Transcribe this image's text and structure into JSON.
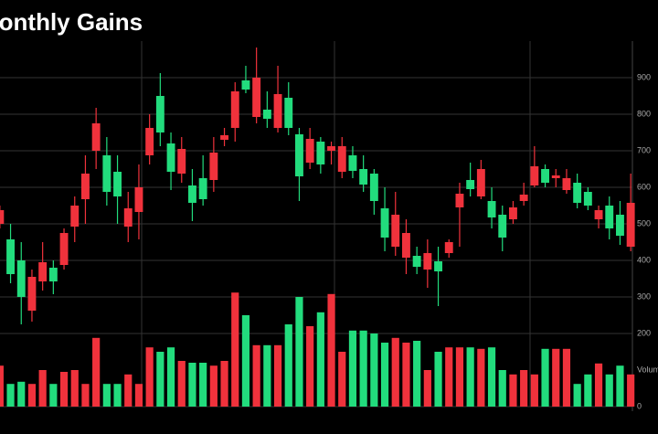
{
  "chart_data": {
    "type": "candlestick",
    "title": "Monthly Gains",
    "up_color": "#22dc7d",
    "down_color": "#f0323c",
    "grid": true,
    "ylim": [
      0,
      1000
    ],
    "yticks": [
      900,
      800,
      700,
      600,
      500,
      400
    ],
    "y2lim": [
      0,
      1000
    ],
    "y2ticks": [
      0,
      200,
      300
    ],
    "y2label": "Volume",
    "open": [
      537.5,
      362.5,
      300,
      355,
      395,
      342.5,
      475,
      550,
      637.5,
      775,
      587.5,
      575,
      542.5,
      600,
      762.5,
      750,
      642.5,
      705,
      557.5,
      567.5,
      695,
      742.5,
      862.5,
      867.5,
      900,
      787.5,
      855,
      762.5,
      630,
      732.5,
      662.5,
      712.5,
      712.5,
      645,
      607.5,
      562.5,
      462.5,
      525,
      475,
      382.5,
      420,
      370,
      450,
      582.5,
      595,
      650,
      517.5,
      462.5,
      545,
      580,
      657.5,
      612.5,
      632.5,
      625,
      557.5,
      550,
      537.5,
      487.5,
      467.5,
      557.5
    ],
    "high": [
      550,
      500,
      450,
      375,
      450,
      400,
      487.5,
      575,
      687.5,
      817.5,
      737.5,
      687.5,
      587.5,
      662.5,
      800,
      912.5,
      750,
      737.5,
      650,
      687.5,
      737.5,
      762.5,
      887.5,
      932.5,
      982.5,
      862.5,
      932.5,
      887.5,
      762.5,
      762.5,
      737.5,
      725,
      737.5,
      712.5,
      687.5,
      650,
      600,
      587.5,
      512.5,
      437.5,
      457.5,
      437.5,
      457.5,
      612.5,
      667.5,
      675,
      600,
      550,
      562.5,
      612.5,
      712.5,
      662.5,
      650,
      650,
      637.5,
      600,
      550,
      575,
      562.5,
      637.5
    ],
    "low": [
      487.5,
      337.5,
      225,
      232.5,
      317.5,
      307.5,
      375,
      450,
      500,
      650,
      550,
      500,
      450,
      457.5,
      662.5,
      712.5,
      592.5,
      612.5,
      507.5,
      550,
      587.5,
      712.5,
      725,
      857.5,
      775,
      762.5,
      750,
      742.5,
      562.5,
      650,
      637.5,
      662.5,
      625,
      625,
      587.5,
      525,
      425,
      412.5,
      362.5,
      362.5,
      325,
      275,
      407.5,
      437.5,
      575,
      567.5,
      487.5,
      425,
      500,
      550,
      600,
      600,
      600,
      582.5,
      542.5,
      537.5,
      487.5,
      457.5,
      442.5,
      425
    ],
    "close": [
      500,
      457.5,
      400,
      262.5,
      342.5,
      380,
      387.5,
      492.5,
      567.5,
      700,
      687.5,
      642.5,
      492.5,
      532.5,
      687.5,
      850,
      720,
      637.5,
      605,
      625,
      620,
      730,
      762.5,
      892.5,
      792.5,
      812.5,
      762.5,
      845,
      745,
      667.5,
      725,
      700,
      642.5,
      687.5,
      650,
      637.5,
      542.5,
      437.5,
      407.5,
      412.5,
      375,
      397.5,
      420,
      545,
      620,
      575,
      562.5,
      525,
      512.5,
      562.5,
      605,
      650,
      625,
      592.5,
      612.5,
      587.5,
      512.5,
      550,
      525,
      437.5
    ],
    "volume": [
      112,
      62,
      68,
      62,
      100,
      62,
      95,
      100,
      62,
      188,
      62,
      62,
      88,
      62,
      162,
      150,
      162,
      125,
      120,
      120,
      112,
      125,
      312,
      250,
      168,
      168,
      168,
      225,
      300,
      220,
      258,
      308,
      150,
      208,
      208,
      200,
      175,
      188,
      175,
      180,
      100,
      150,
      162,
      162,
      162,
      158,
      162,
      100,
      88,
      100,
      88,
      158,
      158,
      158,
      62,
      88,
      118,
      88,
      112,
      88
    ]
  }
}
